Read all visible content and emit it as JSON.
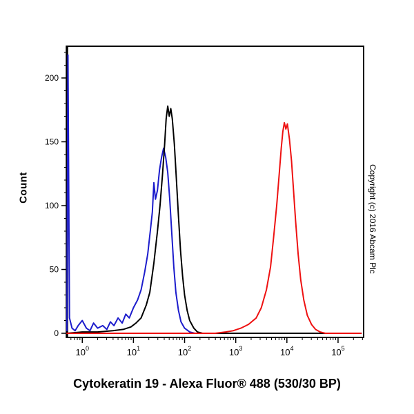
{
  "copyright": "Copyright (c) 2016 Abcam Plc",
  "chart_data": {
    "type": "line",
    "title": "Cytokeratin 19 - Alexa Fluor® 488 (530/30 BP)",
    "xlabel": "Cytokeratin 19 - Alexa Fluor® 488 (530/30 BP)",
    "ylabel": "Count",
    "x_scale": "log10",
    "x_range_log": [
      -0.3,
      5.5
    ],
    "y_range": [
      0,
      225
    ],
    "y_ticks": [
      0,
      50,
      100,
      150,
      200
    ],
    "x_tick_exponents": [
      0,
      1,
      2,
      3,
      4,
      5
    ],
    "grid": false,
    "legend": "none",
    "series": [
      {
        "name": "blue",
        "color": "#1c1ccc",
        "points": [
          [
            -0.3,
            2
          ],
          [
            -0.28,
            218
          ],
          [
            -0.25,
            12
          ],
          [
            -0.2,
            4
          ],
          [
            -0.14,
            2
          ],
          [
            -0.08,
            6
          ],
          [
            0.0,
            10
          ],
          [
            0.08,
            4
          ],
          [
            0.15,
            2
          ],
          [
            0.22,
            8
          ],
          [
            0.3,
            4
          ],
          [
            0.4,
            6
          ],
          [
            0.48,
            3
          ],
          [
            0.55,
            9
          ],
          [
            0.62,
            6
          ],
          [
            0.7,
            12
          ],
          [
            0.78,
            8
          ],
          [
            0.85,
            15
          ],
          [
            0.92,
            12
          ],
          [
            1.0,
            20
          ],
          [
            1.08,
            26
          ],
          [
            1.15,
            34
          ],
          [
            1.22,
            48
          ],
          [
            1.28,
            62
          ],
          [
            1.33,
            80
          ],
          [
            1.37,
            95
          ],
          [
            1.4,
            118
          ],
          [
            1.43,
            105
          ],
          [
            1.47,
            112
          ],
          [
            1.51,
            128
          ],
          [
            1.55,
            138
          ],
          [
            1.59,
            145
          ],
          [
            1.63,
            138
          ],
          [
            1.67,
            126
          ],
          [
            1.71,
            105
          ],
          [
            1.75,
            78
          ],
          [
            1.79,
            52
          ],
          [
            1.83,
            32
          ],
          [
            1.88,
            18
          ],
          [
            1.93,
            9
          ],
          [
            2.0,
            4
          ],
          [
            2.1,
            1
          ],
          [
            2.2,
            0
          ],
          [
            5.45,
            0
          ]
        ]
      },
      {
        "name": "black",
        "color": "#000000",
        "points": [
          [
            -0.3,
            0
          ],
          [
            0.0,
            1
          ],
          [
            0.3,
            1
          ],
          [
            0.6,
            2
          ],
          [
            0.8,
            3
          ],
          [
            0.95,
            5
          ],
          [
            1.05,
            8
          ],
          [
            1.15,
            12
          ],
          [
            1.25,
            22
          ],
          [
            1.32,
            32
          ],
          [
            1.4,
            55
          ],
          [
            1.47,
            80
          ],
          [
            1.52,
            100
          ],
          [
            1.57,
            125
          ],
          [
            1.61,
            148
          ],
          [
            1.64,
            168
          ],
          [
            1.67,
            178
          ],
          [
            1.7,
            170
          ],
          [
            1.73,
            176
          ],
          [
            1.76,
            168
          ],
          [
            1.8,
            148
          ],
          [
            1.84,
            120
          ],
          [
            1.88,
            92
          ],
          [
            1.92,
            65
          ],
          [
            1.96,
            45
          ],
          [
            2.0,
            30
          ],
          [
            2.05,
            18
          ],
          [
            2.1,
            10
          ],
          [
            2.18,
            4
          ],
          [
            2.25,
            1
          ],
          [
            2.35,
            0
          ],
          [
            5.45,
            0
          ]
        ]
      },
      {
        "name": "red",
        "color": "#ee1111",
        "points": [
          [
            -0.3,
            0
          ],
          [
            2.6,
            0
          ],
          [
            2.8,
            1
          ],
          [
            2.95,
            2
          ],
          [
            3.1,
            4
          ],
          [
            3.25,
            7
          ],
          [
            3.4,
            12
          ],
          [
            3.5,
            20
          ],
          [
            3.6,
            34
          ],
          [
            3.68,
            52
          ],
          [
            3.74,
            75
          ],
          [
            3.8,
            100
          ],
          [
            3.85,
            125
          ],
          [
            3.89,
            145
          ],
          [
            3.92,
            158
          ],
          [
            3.95,
            165
          ],
          [
            3.98,
            160
          ],
          [
            4.01,
            164
          ],
          [
            4.05,
            152
          ],
          [
            4.09,
            135
          ],
          [
            4.13,
            112
          ],
          [
            4.17,
            88
          ],
          [
            4.22,
            62
          ],
          [
            4.27,
            42
          ],
          [
            4.33,
            26
          ],
          [
            4.4,
            14
          ],
          [
            4.48,
            7
          ],
          [
            4.56,
            3
          ],
          [
            4.65,
            1
          ],
          [
            4.75,
            0
          ],
          [
            5.45,
            0
          ]
        ]
      }
    ]
  }
}
